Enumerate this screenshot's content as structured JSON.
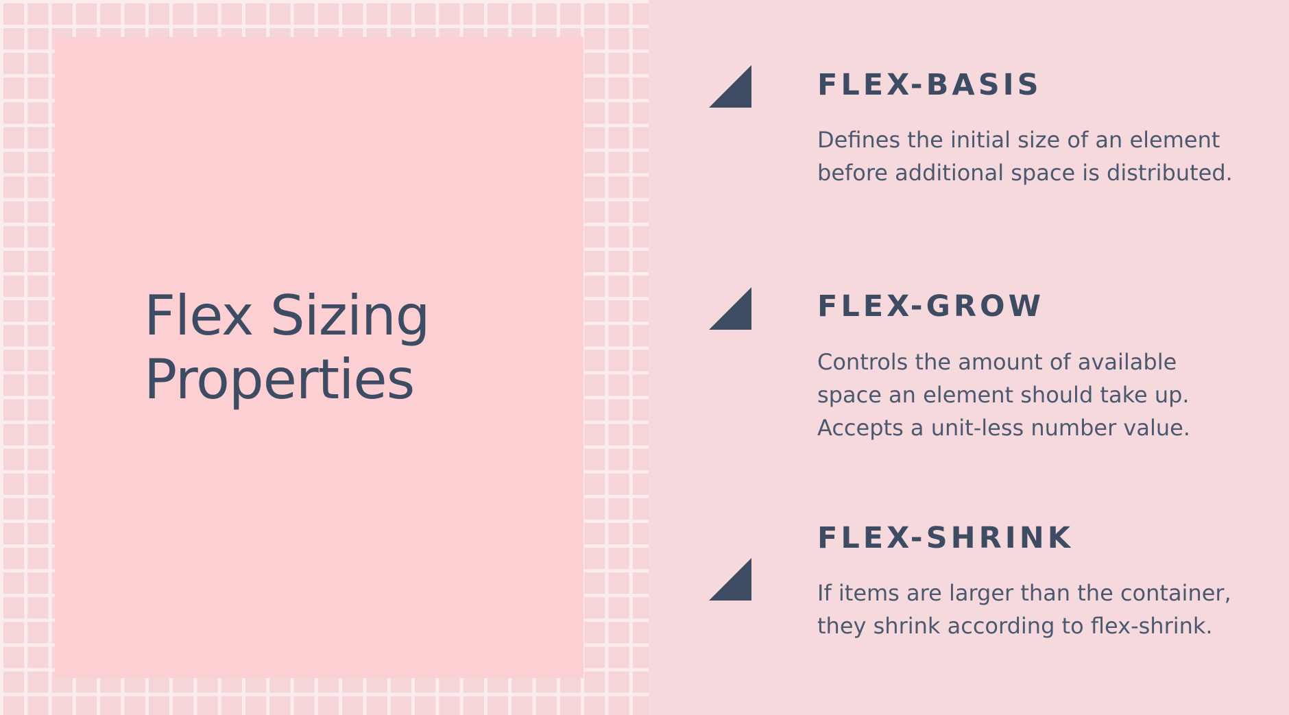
{
  "slide": {
    "title_line1": "Flex Sizing",
    "title_line2": "Properties",
    "items": [
      {
        "heading": "FLEX-BASIS",
        "description": "Defines the initial size of an element before additional space is distributed.",
        "icon": "triangle-icon"
      },
      {
        "heading": "FLEX-GROW",
        "description": "Controls the amount of available space an element should take up. Accepts a unit-less number value.",
        "icon": "triangle-icon"
      },
      {
        "heading": "FLEX-SHRINK",
        "description": "If items are larger than the container, they shrink according to flex-shrink.",
        "icon": "triangle-icon"
      }
    ]
  },
  "colors": {
    "background": "#f6d9dc",
    "card": "#fccfd3",
    "grid_lines": "#fcecee",
    "text_dark": "#3d4c63"
  }
}
